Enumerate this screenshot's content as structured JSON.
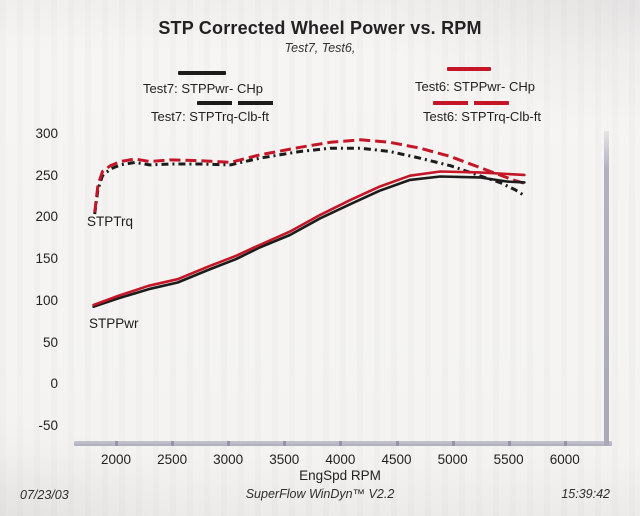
{
  "header": {
    "title": "STP Corrected Wheel Power vs. RPM",
    "subtitle": "Test7, Test6,"
  },
  "legend": [
    {
      "id": "test7-power",
      "label": "Test7: STPPwr- CHp",
      "color": "#1c1c1c",
      "style": "solid"
    },
    {
      "id": "test7-torque",
      "label": "Test7: STPTrq-Clb-ft",
      "color": "#1c1c1c",
      "style": "dashed"
    },
    {
      "id": "test6-power",
      "label": "Test6: STPPwr- CHp",
      "color": "#c41626",
      "style": "solid"
    },
    {
      "id": "test6-torque",
      "label": "Test6: STPTrq-Clb-ft",
      "color": "#c41626",
      "style": "dashed"
    }
  ],
  "footer": {
    "date": "07/23/03",
    "app": "SuperFlow WinDyn™ V2.2",
    "time": "15:39:42"
  },
  "chart_data": {
    "type": "line",
    "title": "STP Corrected Wheel Power vs. RPM",
    "subtitle": "Test7, Test6,",
    "xlabel": "EngSpd RPM",
    "ylabel": "",
    "x_ticks": [
      2000,
      2500,
      3000,
      3500,
      4000,
      4500,
      5000,
      5500,
      6000
    ],
    "y_ticks": [
      300,
      250,
      200,
      150,
      100,
      50,
      0,
      -50
    ],
    "xlim": [
      1640,
      6400
    ],
    "ylim": [
      -55,
      305
    ],
    "grid": false,
    "legend_position": "top",
    "annotations": [
      {
        "text": "STPTrq",
        "x": 1760,
        "y": 200
      },
      {
        "text": "STPPwr",
        "x": 1770,
        "y": 78
      }
    ],
    "series": [
      {
        "id": "test7-torque",
        "name": "Test7: STPTrq-Clb-ft",
        "color": "#1c1c1c",
        "dash": "7 4 2 4",
        "width": 3,
        "points": [
          [
            1810,
            204
          ],
          [
            1840,
            234
          ],
          [
            1880,
            250
          ],
          [
            1950,
            258
          ],
          [
            2040,
            263
          ],
          [
            2170,
            266
          ],
          [
            2300,
            263
          ],
          [
            2480,
            264
          ],
          [
            2750,
            264
          ],
          [
            3020,
            263
          ],
          [
            3280,
            271
          ],
          [
            3640,
            279
          ],
          [
            3910,
            283
          ],
          [
            4180,
            283
          ],
          [
            4440,
            279
          ],
          [
            4710,
            271
          ],
          [
            4980,
            262
          ],
          [
            5240,
            250
          ],
          [
            5420,
            242
          ],
          [
            5560,
            233
          ],
          [
            5640,
            226
          ]
        ]
      },
      {
        "id": "test6-torque",
        "name": "Test6: STPTrq-Clb-ft",
        "color": "#c41626",
        "dash": "11 5",
        "width": 3,
        "points": [
          [
            1810,
            206
          ],
          [
            1840,
            239
          ],
          [
            1880,
            255
          ],
          [
            1950,
            262
          ],
          [
            2040,
            267
          ],
          [
            2170,
            270
          ],
          [
            2300,
            267
          ],
          [
            2480,
            269
          ],
          [
            2750,
            268
          ],
          [
            3020,
            266
          ],
          [
            3280,
            275
          ],
          [
            3640,
            284
          ],
          [
            3910,
            290
          ],
          [
            4180,
            293
          ],
          [
            4440,
            290
          ],
          [
            4710,
            283
          ],
          [
            4980,
            273
          ],
          [
            5240,
            260
          ],
          [
            5420,
            251
          ],
          [
            5560,
            244
          ],
          [
            5640,
            241
          ]
        ]
      },
      {
        "id": "test7-power",
        "name": "Test7: STPPwr- CHp",
        "color": "#1c1c1c",
        "dash": null,
        "width": 2.6,
        "points": [
          [
            1800,
            93
          ],
          [
            2020,
            103
          ],
          [
            2290,
            114
          ],
          [
            2550,
            122
          ],
          [
            2820,
            137
          ],
          [
            3070,
            150
          ],
          [
            3280,
            164
          ],
          [
            3550,
            179
          ],
          [
            3820,
            199
          ],
          [
            4090,
            216
          ],
          [
            4350,
            232
          ],
          [
            4620,
            245
          ],
          [
            4890,
            249
          ],
          [
            5240,
            248
          ],
          [
            5490,
            243
          ],
          [
            5640,
            242
          ]
        ]
      },
      {
        "id": "test6-power",
        "name": "Test6: STPPwr- CHp",
        "color": "#c41626",
        "dash": null,
        "width": 2.6,
        "points": [
          [
            1800,
            95
          ],
          [
            2020,
            106
          ],
          [
            2290,
            118
          ],
          [
            2550,
            126
          ],
          [
            2820,
            141
          ],
          [
            3070,
            154
          ],
          [
            3280,
            167
          ],
          [
            3550,
            183
          ],
          [
            3820,
            203
          ],
          [
            4090,
            221
          ],
          [
            4350,
            237
          ],
          [
            4620,
            250
          ],
          [
            4890,
            255
          ],
          [
            5240,
            254
          ],
          [
            5490,
            252
          ],
          [
            5640,
            251
          ]
        ]
      }
    ]
  }
}
